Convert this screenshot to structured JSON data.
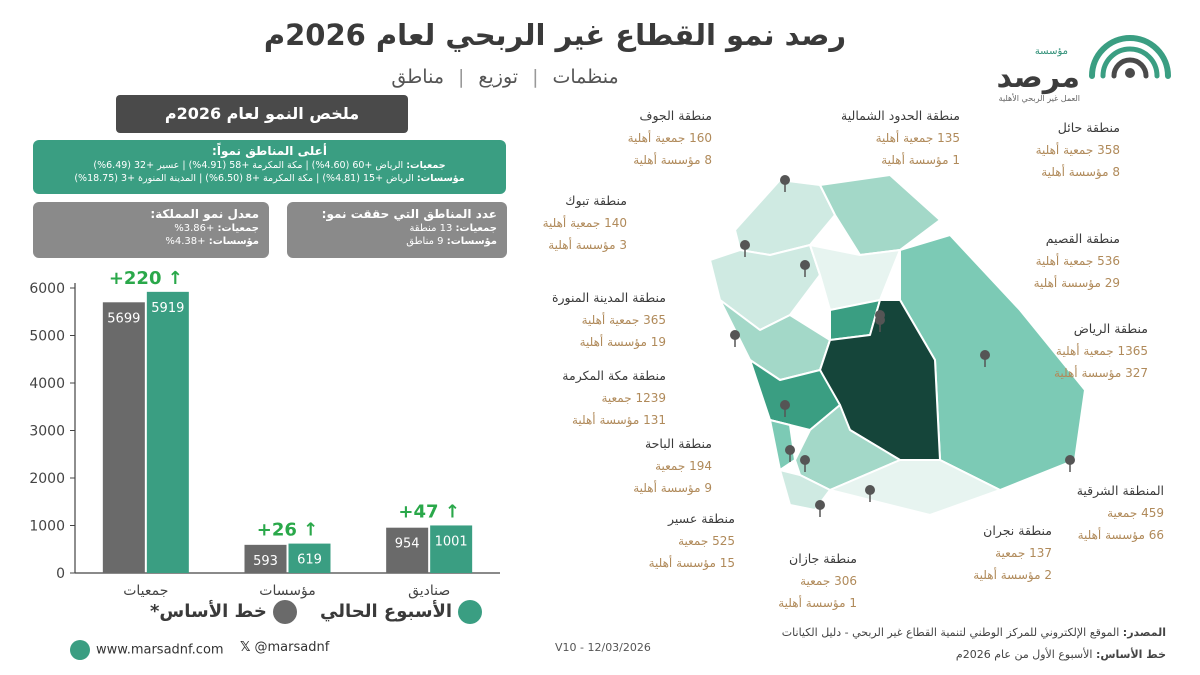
{
  "header": {
    "title": "رصد نمو القطاع غير الربحي لعام 2026م",
    "subtitle_items": [
      "منظمات",
      "توزيع",
      "مناطق"
    ],
    "logo": {
      "pre": "مؤسسة",
      "word": "مرصد",
      "tagline": "العمل غير الربحي الأهلية"
    }
  },
  "summary": {
    "title": "ملخص النمو لعام 2026م",
    "top": {
      "heading": "أعلى المناطق نمواً:",
      "assoc_label": "جمعيات:",
      "assoc_text": "الرياض +60 (4.60%) | مكة المكرمة +58 (4.91%) | عسير +32 (6.49%)",
      "found_label": "مؤسسات:",
      "found_text": "الرياض +15 (4.81%) | مكة المكرمة +8 (6.50%) | المدينة المنورة +3 (18.75%)"
    },
    "avg": {
      "heading": "معدل نمو المملكة:",
      "assoc_label": "جمعيات:",
      "assoc_value": "+3.86%",
      "found_label": "مؤسسات:",
      "found_value": "+4.38%"
    },
    "regions": {
      "heading": "عدد المناطق التي حققت نمو:",
      "assoc_label": "جمعيات:",
      "assoc_value": "13 منطقة",
      "found_label": "مؤسسات:",
      "found_value": "9  مناطق"
    }
  },
  "chart_data": {
    "type": "bar",
    "categories": [
      "جمعيات",
      "مؤسسات",
      "صناديق"
    ],
    "series": [
      {
        "name": "خط الأساس*",
        "values": [
          5699,
          593,
          954
        ],
        "color": "#6a6a6a"
      },
      {
        "name": "الأسبوع الحالي",
        "values": [
          5919,
          619,
          1001
        ],
        "color": "#3a9e82"
      }
    ],
    "growth_labels": [
      "+220 ↑",
      "+26 ↑",
      "+47 ↑"
    ],
    "ylim": [
      0,
      6000
    ],
    "yticks": [
      0,
      1000,
      2000,
      3000,
      4000,
      5000,
      6000
    ],
    "grid": false,
    "legend": "bottom"
  },
  "legend": {
    "current": "الأسبوع الحالي",
    "base": "خط الأساس*"
  },
  "regions": [
    {
      "name": "منطقة الجوف",
      "assoc": "160 جمعية أهلية",
      "found": "8  مؤسسة أهلية"
    },
    {
      "name": "منطقة الحدود الشمالية",
      "assoc": "135 جمعية أهلية",
      "found": "1 مؤسسة أهلية"
    },
    {
      "name": "منطقة حائل",
      "assoc": "358 جمعية أهلية",
      "found": "8 مؤسسة أهلية"
    },
    {
      "name": "منطقة تبوك",
      "assoc": "140 جمعية أهلية",
      "found": "3 مؤسسة أهلية"
    },
    {
      "name": "منطقة القصيم",
      "assoc": "536 جمعية أهلية",
      "found": "29 مؤسسة أهلية"
    },
    {
      "name": "منطقة المدينة المنورة",
      "assoc": "365 جمعية أهلية",
      "found": "19 مؤسسة أهلية"
    },
    {
      "name": "منطقة الرياض",
      "assoc": "1365 جمعية أهلية",
      "found": "327 مؤسسة أهلية"
    },
    {
      "name": "منطقة مكة المكرمة",
      "assoc": "1239 جمعية",
      "found": "131 مؤسسة أهلية"
    },
    {
      "name": "منطقة الباحة",
      "assoc": "194 جمعية",
      "found": "9 مؤسسة أهلية"
    },
    {
      "name": "المنطقة الشرقية",
      "assoc": "459 جمعية",
      "found": "66 مؤسسة أهلية"
    },
    {
      "name": "منطقة عسير",
      "assoc": "525 جمعية",
      "found": "15 مؤسسة أهلية"
    },
    {
      "name": "منطقة نجران",
      "assoc": "137 جمعية",
      "found": "2 مؤسسة أهلية"
    },
    {
      "name": "منطقة جازان",
      "assoc": "306 جمعية",
      "found": "1 مؤسسة أهلية"
    }
  ],
  "footer": {
    "website": "www.marsadnf.com",
    "x_handle": "@marsadnf",
    "version": "V10  - 12/03/2026",
    "source_label": "المصدر:",
    "source_text": "الموقع الإلكتروني للمركز الوطني لتنمية القطاع غير الربحي - دليل الكيانات",
    "base_label": "خط الأساس:",
    "base_text": "الأسبوع الأول من عام 2026م"
  }
}
